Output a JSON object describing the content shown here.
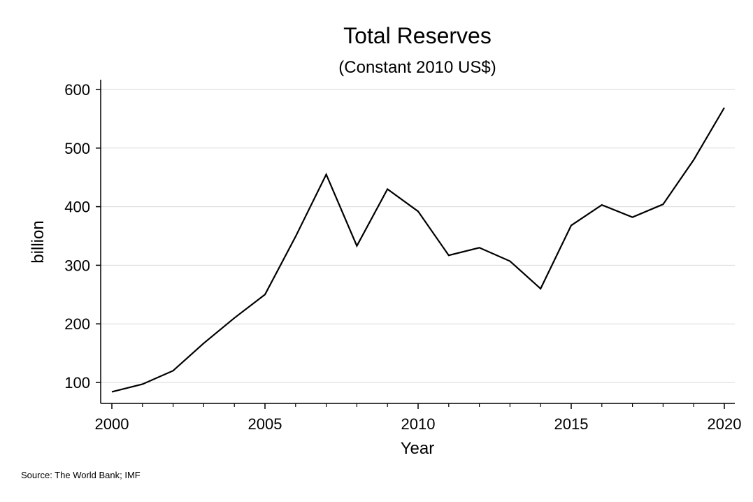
{
  "chart_data": {
    "type": "line",
    "title": "Total Reserves",
    "subtitle": "(Constant 2010 US$)",
    "xlabel": "Year",
    "ylabel": "billion",
    "xlim": [
      2000,
      2020
    ],
    "ylim": [
      65,
      618
    ],
    "x_ticks": [
      2000,
      2005,
      2010,
      2015,
      2020
    ],
    "x_tick_labels": [
      "2000",
      "2005",
      "2010",
      "2015",
      "2020"
    ],
    "x_minor_ticks": [
      2001,
      2002,
      2003,
      2004,
      2006,
      2007,
      2008,
      2009,
      2011,
      2012,
      2013,
      2014,
      2016,
      2017,
      2018,
      2019
    ],
    "y_ticks": [
      100,
      200,
      300,
      400,
      500,
      600
    ],
    "y_tick_labels": [
      "100",
      "200",
      "300",
      "400",
      "500",
      "600"
    ],
    "grid": true,
    "line_color": "#000000",
    "grid_color": "#d9d9d9",
    "x": [
      2000,
      2001,
      2002,
      2003,
      2004,
      2005,
      2006,
      2007,
      2008,
      2009,
      2010,
      2011,
      2012,
      2013,
      2014,
      2015,
      2016,
      2017,
      2018,
      2019,
      2020
    ],
    "y": [
      84,
      97,
      120,
      167,
      210,
      250,
      349,
      455,
      333,
      430,
      392,
      317,
      330,
      307,
      260,
      368,
      403,
      382,
      404,
      480,
      569
    ],
    "note": "Source: The World Bank; IMF"
  }
}
